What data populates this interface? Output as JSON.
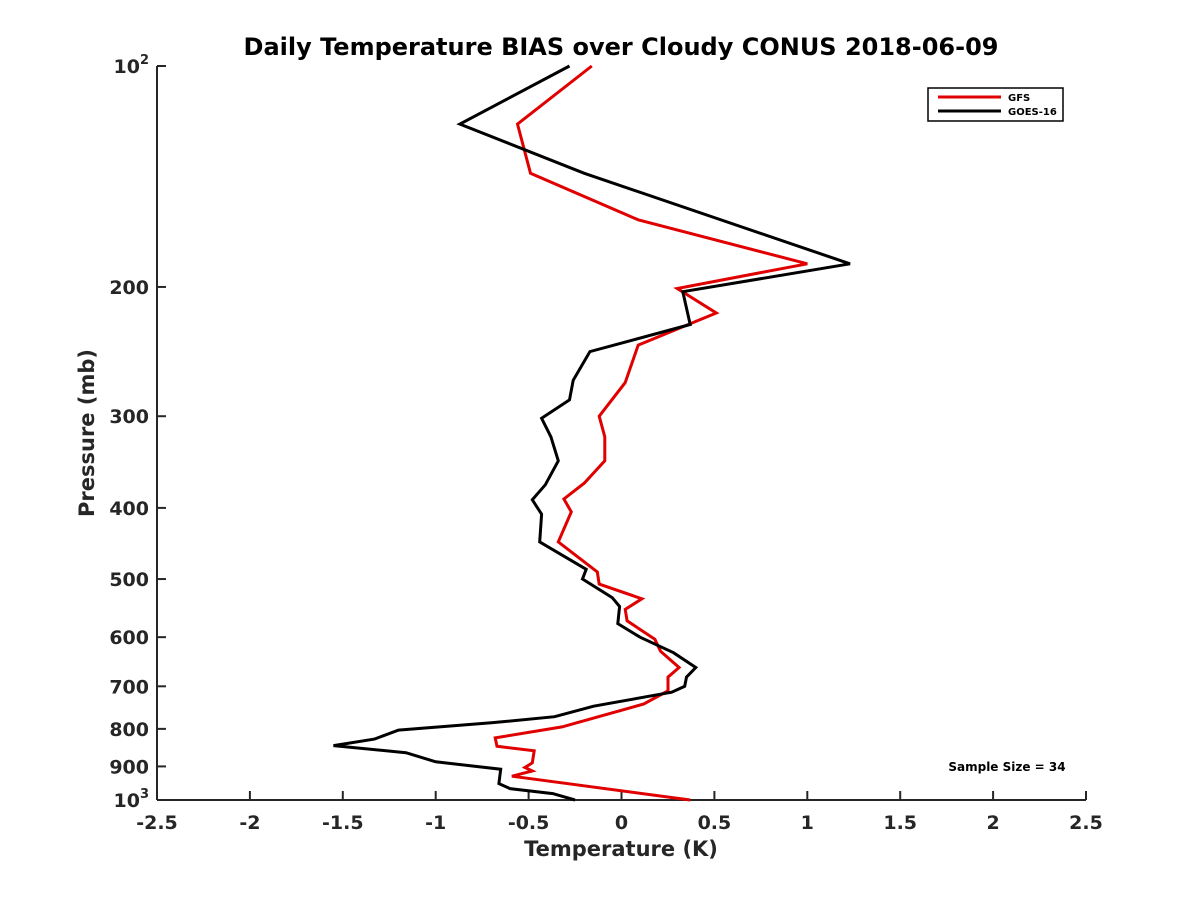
{
  "chart_data": {
    "type": "line",
    "title": "Daily Temperature BIAS over Cloudy CONUS 2018-06-09",
    "xlabel": "Temperature (K)",
    "ylabel": "Pressure (mb)",
    "xlim": [
      -2.5,
      2.5
    ],
    "ylim": [
      100,
      1000
    ],
    "y_scale": "log",
    "y_reversed": true,
    "grid": false,
    "legend_position": "top-right",
    "colors": {
      "GFS": "#e00000",
      "GOES-16": "#000000"
    },
    "x_ticks": [
      "-2.5",
      "-2",
      "-1.5",
      "-1",
      "-0.5",
      "0",
      "0.5",
      "1",
      "1.5",
      "2",
      "2.5"
    ],
    "x_tick_values": [
      -2.5,
      -2,
      -1.5,
      -1,
      -0.5,
      0,
      0.5,
      1,
      1.5,
      2,
      2.5
    ],
    "y_ticks": [
      {
        "value": 100,
        "base": "10",
        "exp": "2"
      },
      {
        "value": 200,
        "base": "200",
        "exp": ""
      },
      {
        "value": 300,
        "base": "300",
        "exp": ""
      },
      {
        "value": 400,
        "base": "400",
        "exp": ""
      },
      {
        "value": 500,
        "base": "500",
        "exp": ""
      },
      {
        "value": 600,
        "base": "600",
        "exp": ""
      },
      {
        "value": 700,
        "base": "700",
        "exp": ""
      },
      {
        "value": 800,
        "base": "800",
        "exp": ""
      },
      {
        "value": 900,
        "base": "900",
        "exp": ""
      },
      {
        "value": 1000,
        "base": "10",
        "exp": "3"
      }
    ],
    "series": [
      {
        "name": "GFS",
        "points": [
          [
            -0.16,
            100
          ],
          [
            -0.56,
            120
          ],
          [
            -0.49,
            140
          ],
          [
            0.09,
            162
          ],
          [
            1.0,
            186
          ],
          [
            0.3,
            201
          ],
          [
            0.51,
            217
          ],
          [
            0.09,
            240
          ],
          [
            0.02,
            270
          ],
          [
            -0.12,
            300
          ],
          [
            -0.09,
            320
          ],
          [
            -0.09,
            345
          ],
          [
            -0.2,
            370
          ],
          [
            -0.31,
            389
          ],
          [
            -0.27,
            405
          ],
          [
            -0.34,
            445
          ],
          [
            -0.13,
            489
          ],
          [
            -0.12,
            508
          ],
          [
            0.11,
            532
          ],
          [
            0.02,
            550
          ],
          [
            0.03,
            570
          ],
          [
            0.18,
            604
          ],
          [
            0.21,
            627
          ],
          [
            0.31,
            660
          ],
          [
            0.25,
            680
          ],
          [
            0.25,
            710
          ],
          [
            0.12,
            740
          ],
          [
            -0.32,
            795
          ],
          [
            -0.68,
            823
          ],
          [
            -0.67,
            845
          ],
          [
            -0.47,
            857
          ],
          [
            -0.48,
            890
          ],
          [
            -0.52,
            903
          ],
          [
            -0.48,
            913
          ],
          [
            -0.59,
            928
          ],
          [
            0.37,
            1000
          ]
        ]
      },
      {
        "name": "GOES-16",
        "points": [
          [
            -0.28,
            100
          ],
          [
            -0.87,
            120
          ],
          [
            -0.2,
            140
          ],
          [
            1.23,
            186
          ],
          [
            0.33,
            203
          ],
          [
            0.37,
            225
          ],
          [
            -0.17,
            245
          ],
          [
            -0.26,
            268
          ],
          [
            -0.28,
            285
          ],
          [
            -0.43,
            302
          ],
          [
            -0.38,
            320
          ],
          [
            -0.34,
            345
          ],
          [
            -0.41,
            372
          ],
          [
            -0.48,
            390
          ],
          [
            -0.43,
            408
          ],
          [
            -0.44,
            445
          ],
          [
            -0.19,
            485
          ],
          [
            -0.21,
            500
          ],
          [
            -0.05,
            530
          ],
          [
            -0.01,
            545
          ],
          [
            -0.02,
            575
          ],
          [
            0.1,
            600
          ],
          [
            0.28,
            630
          ],
          [
            0.4,
            660
          ],
          [
            0.35,
            680
          ],
          [
            0.34,
            700
          ],
          [
            0.27,
            713
          ],
          [
            -0.15,
            745
          ],
          [
            -0.36,
            770
          ],
          [
            -0.7,
            785
          ],
          [
            -1.2,
            803
          ],
          [
            -1.33,
            826
          ],
          [
            -1.55,
            843
          ],
          [
            -1.16,
            862
          ],
          [
            -1.0,
            887
          ],
          [
            -0.65,
            908
          ],
          [
            -0.66,
            950
          ],
          [
            -0.6,
            965
          ],
          [
            -0.37,
            980
          ],
          [
            -0.25,
            1000
          ]
        ]
      }
    ],
    "annotation": "Sample Size = 34"
  }
}
